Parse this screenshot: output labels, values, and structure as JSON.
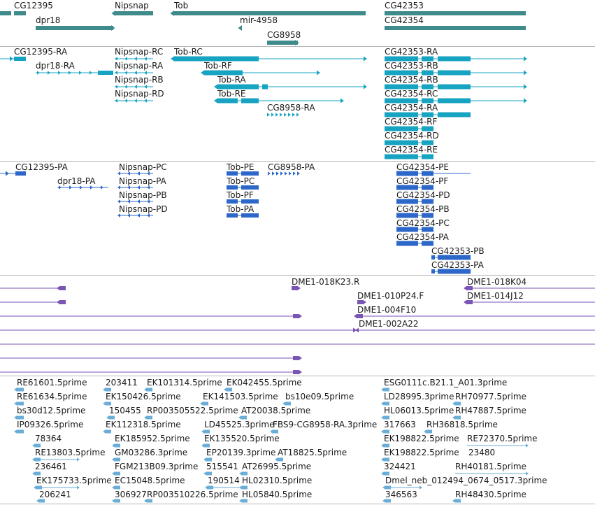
{
  "colors": {
    "gene": "#3f8b8b",
    "transcript_fb": "#17a3c2",
    "transcript_other": "#2d67c9",
    "clone": "#7a55b5",
    "est": "#6aaed8",
    "divider": "#b8b8b8"
  },
  "genes": [
    "CG12395",
    "Nipsnap",
    "Tob",
    "CG42353",
    "dpr18",
    "mir-4958",
    "CG42354",
    "CG8958"
  ],
  "transcripts": [
    "CG12395-RA",
    "Nipsnap-RC",
    "Tob-RC",
    "CG42353-RA",
    "dpr18-RA",
    "Nipsnap-RA",
    "Tob-RF",
    "CG42353-RB",
    "Nipsnap-RB",
    "Tob-RA",
    "CG42354-RB",
    "Nipsnap-RD",
    "Tob-RE",
    "CG42354-RC",
    "CG8958-RA",
    "CG42354-RA",
    "CG42354-RF",
    "CG42354-RD",
    "CG42354-RE"
  ],
  "transcripts2": [
    "CG12395-PA",
    "Nipsnap-PC",
    "Tob-PE",
    "CG8958-PA",
    "CG42354-PE",
    "dpr18-PA",
    "Nipsnap-PA",
    "Tob-PC",
    "CG42354-PF",
    "Nipsnap-PB",
    "Tob-PF",
    "CG42354-PD",
    "Nipsnap-PD",
    "Tob-PA",
    "CG42354-PB",
    "CG42354-PC",
    "CG42354-PA",
    "CG42353-PB",
    "CG42353-PA"
  ],
  "clones": [
    "DME1-018K23.R",
    "DME1-018K04",
    "DME1-010P24.F",
    "DME1-014J12",
    "DME1-004F10",
    "DME1-002A22"
  ],
  "ests": [
    "RE61601.5prime",
    "203411",
    "EK101314.5prime",
    "EK042455.5prime",
    "ESG0111c.B21.1_A01.3prime",
    "RE61634.5prime",
    "EK150426.5prime",
    "EK141503.5prime",
    "bs10e09.5prime",
    "LD28995.3prime",
    "RH70977.5prime",
    "bs30d12.5prime",
    "150455",
    "RP003505522.5prime",
    "AT20038.5prime",
    "HL06013.5prime",
    "RH47887.5prime",
    "IP09326.5prime",
    "EK112318.5prime",
    "LD45525.3prime",
    "FBS9-CG8958-RA.3prime",
    "317663",
    "RH36818.5prime",
    "78364",
    "EK185952.5prime",
    "EK135520.5prime",
    "EK198822.5prime",
    "RE72370.5prime",
    "RE13803.5prime",
    "GM03286.3prime",
    "EP20139.3prime",
    "AT18825.5prime",
    "EK198822.5prime",
    "23480",
    "236461",
    "FGM213B09.3prime",
    "515541",
    "AT26995.5prime",
    "324421",
    "RH40181.5prime",
    "EK175733.5prime",
    "EC15048.5prime",
    "190514",
    "HL02310.5prime",
    "Dmel_neb_012494_0674_0517.3prime",
    "206241",
    "306927",
    "RP003510226.5prime",
    "HL05840.5prime",
    "346563",
    "RH48430.5prime"
  ]
}
